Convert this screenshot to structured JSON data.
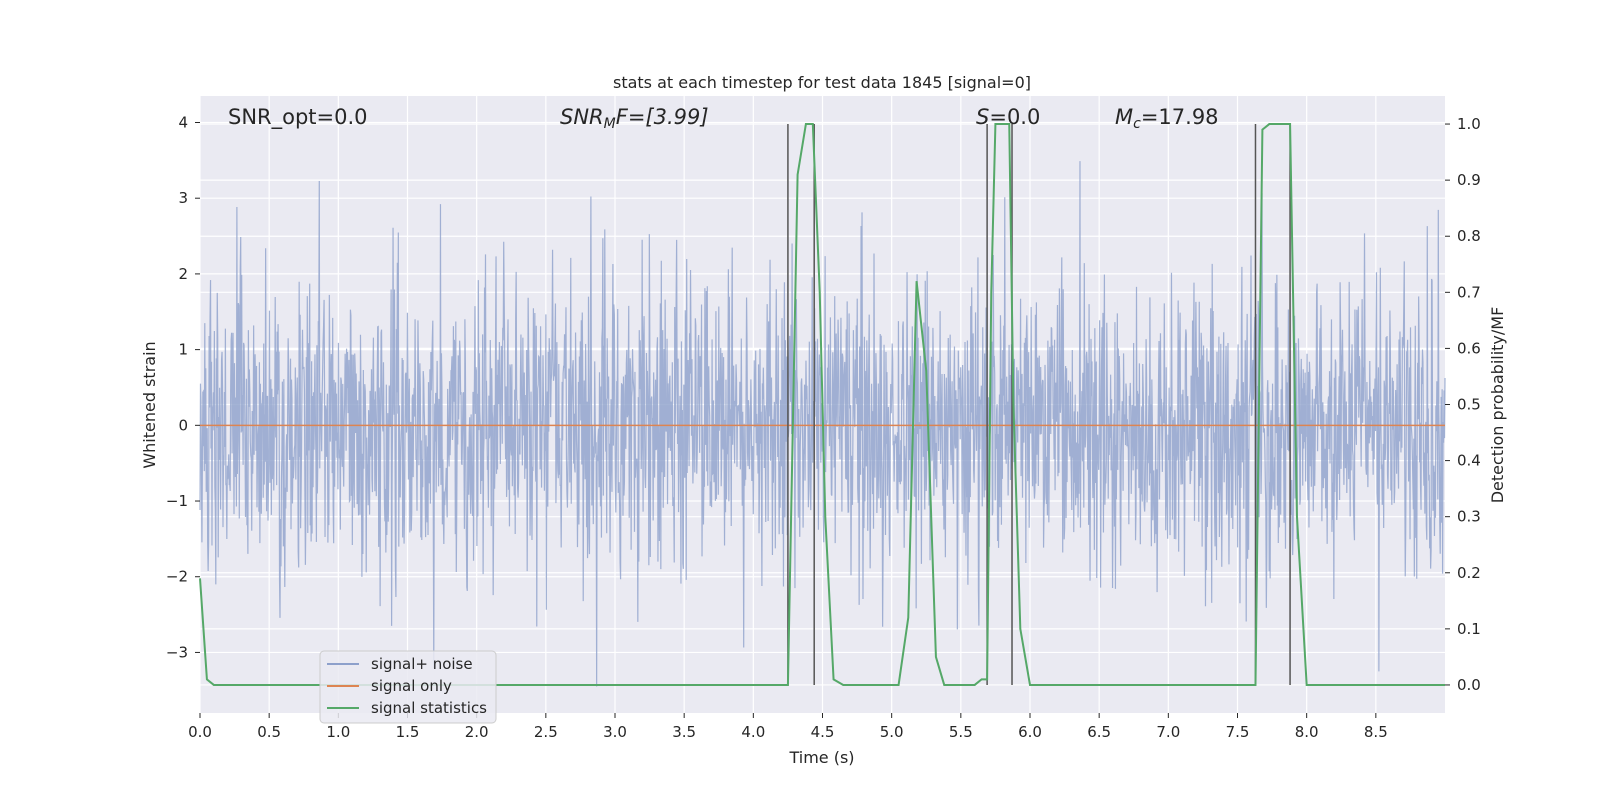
{
  "chart_data": {
    "type": "line",
    "title": "stats at each timestep for test data 1845 [signal=0]",
    "xlabel": "Time (s)",
    "ylabel_left": "Whitened strain",
    "ylabel_right": "Detection probability/MF",
    "xlim": [
      0,
      9
    ],
    "ylim_left": [
      -3.8,
      4.35
    ],
    "ylim_right": [
      -0.05,
      1.05
    ],
    "xticks": [
      0.0,
      0.5,
      1.0,
      1.5,
      2.0,
      2.5,
      3.0,
      3.5,
      4.0,
      4.5,
      5.0,
      5.5,
      6.0,
      6.5,
      7.0,
      7.5,
      8.0,
      8.5
    ],
    "xtick_labels": [
      "0.0",
      "0.5",
      "1.0",
      "1.5",
      "2.0",
      "2.5",
      "3.0",
      "3.5",
      "4.0",
      "4.5",
      "5.0",
      "5.5",
      "6.0",
      "6.5",
      "7.0",
      "7.5",
      "8.0",
      "8.5"
    ],
    "yticks_left": [
      -3,
      -2,
      -1,
      0,
      1,
      2,
      3,
      4
    ],
    "ytick_labels_left": [
      "−3",
      "−2",
      "−1",
      "0",
      "1",
      "2",
      "3",
      "4"
    ],
    "yticks_right": [
      0.0,
      0.1,
      0.2,
      0.3,
      0.4,
      0.5,
      0.6,
      0.7,
      0.8,
      0.9,
      1.0
    ],
    "ytick_labels_right": [
      "0.0",
      "0.1",
      "0.2",
      "0.3",
      "0.4",
      "0.5",
      "0.6",
      "0.7",
      "0.8",
      "0.9",
      "1.0"
    ],
    "grid": true,
    "legend": {
      "placement": "lower-left",
      "entries": [
        {
          "label": "signal+ noise",
          "color": "#8da0cb"
        },
        {
          "label": "signal only",
          "color": "#dd8452"
        },
        {
          "label": "signal statistics",
          "color": "#55a868"
        }
      ]
    },
    "annotations": {
      "snr_opt": "SNR_opt=0.0",
      "snr_mf_main": "SNR",
      "snr_mf_sub": "M",
      "snr_mf_rest": "F=[3.99]",
      "s_main": "S",
      "s_rest": "=0.0",
      "mc_main": "M",
      "mc_sub": "c",
      "mc_rest": "=17.98"
    },
    "series": [
      {
        "name": "signal+ noise",
        "color": "#8da0cb",
        "noise_sigma": 1.0,
        "noise_range": [
          -3.45,
          3.68
        ],
        "x_range": [
          0,
          9
        ]
      },
      {
        "name": "signal only",
        "color": "#dd8452",
        "x": [
          0,
          9
        ],
        "y": [
          0,
          0
        ]
      },
      {
        "name": "signal statistics",
        "color": "#55a868",
        "x": [
          0.0,
          0.05,
          0.1,
          0.15,
          0.2,
          4.2,
          4.25,
          4.32,
          4.38,
          4.43,
          4.48,
          4.52,
          4.58,
          4.65,
          5.0,
          5.05,
          5.12,
          5.18,
          5.25,
          5.32,
          5.38,
          5.6,
          5.65,
          5.69,
          5.72,
          5.75,
          5.85,
          5.88,
          5.93,
          6.0,
          7.6,
          7.63,
          7.68,
          7.73,
          7.8,
          7.88,
          7.93,
          8.0,
          9.0
        ],
        "y": [
          0.19,
          0.01,
          0.0,
          0.0,
          0.0,
          0.0,
          0.0,
          0.91,
          1.0,
          1.0,
          0.7,
          0.3,
          0.01,
          0.0,
          0.0,
          0.0,
          0.12,
          0.72,
          0.56,
          0.05,
          0.0,
          0.0,
          0.01,
          0.01,
          0.7,
          1.0,
          1.0,
          0.5,
          0.1,
          0.0,
          0.0,
          0.0,
          0.99,
          1.0,
          1.0,
          1.0,
          0.3,
          0.0,
          0.0
        ]
      }
    ],
    "vertical_markers": {
      "color": "#555555",
      "x": [
        4.25,
        4.44,
        5.69,
        5.87,
        7.63,
        7.88
      ],
      "y_range_right": [
        0,
        1
      ]
    }
  }
}
